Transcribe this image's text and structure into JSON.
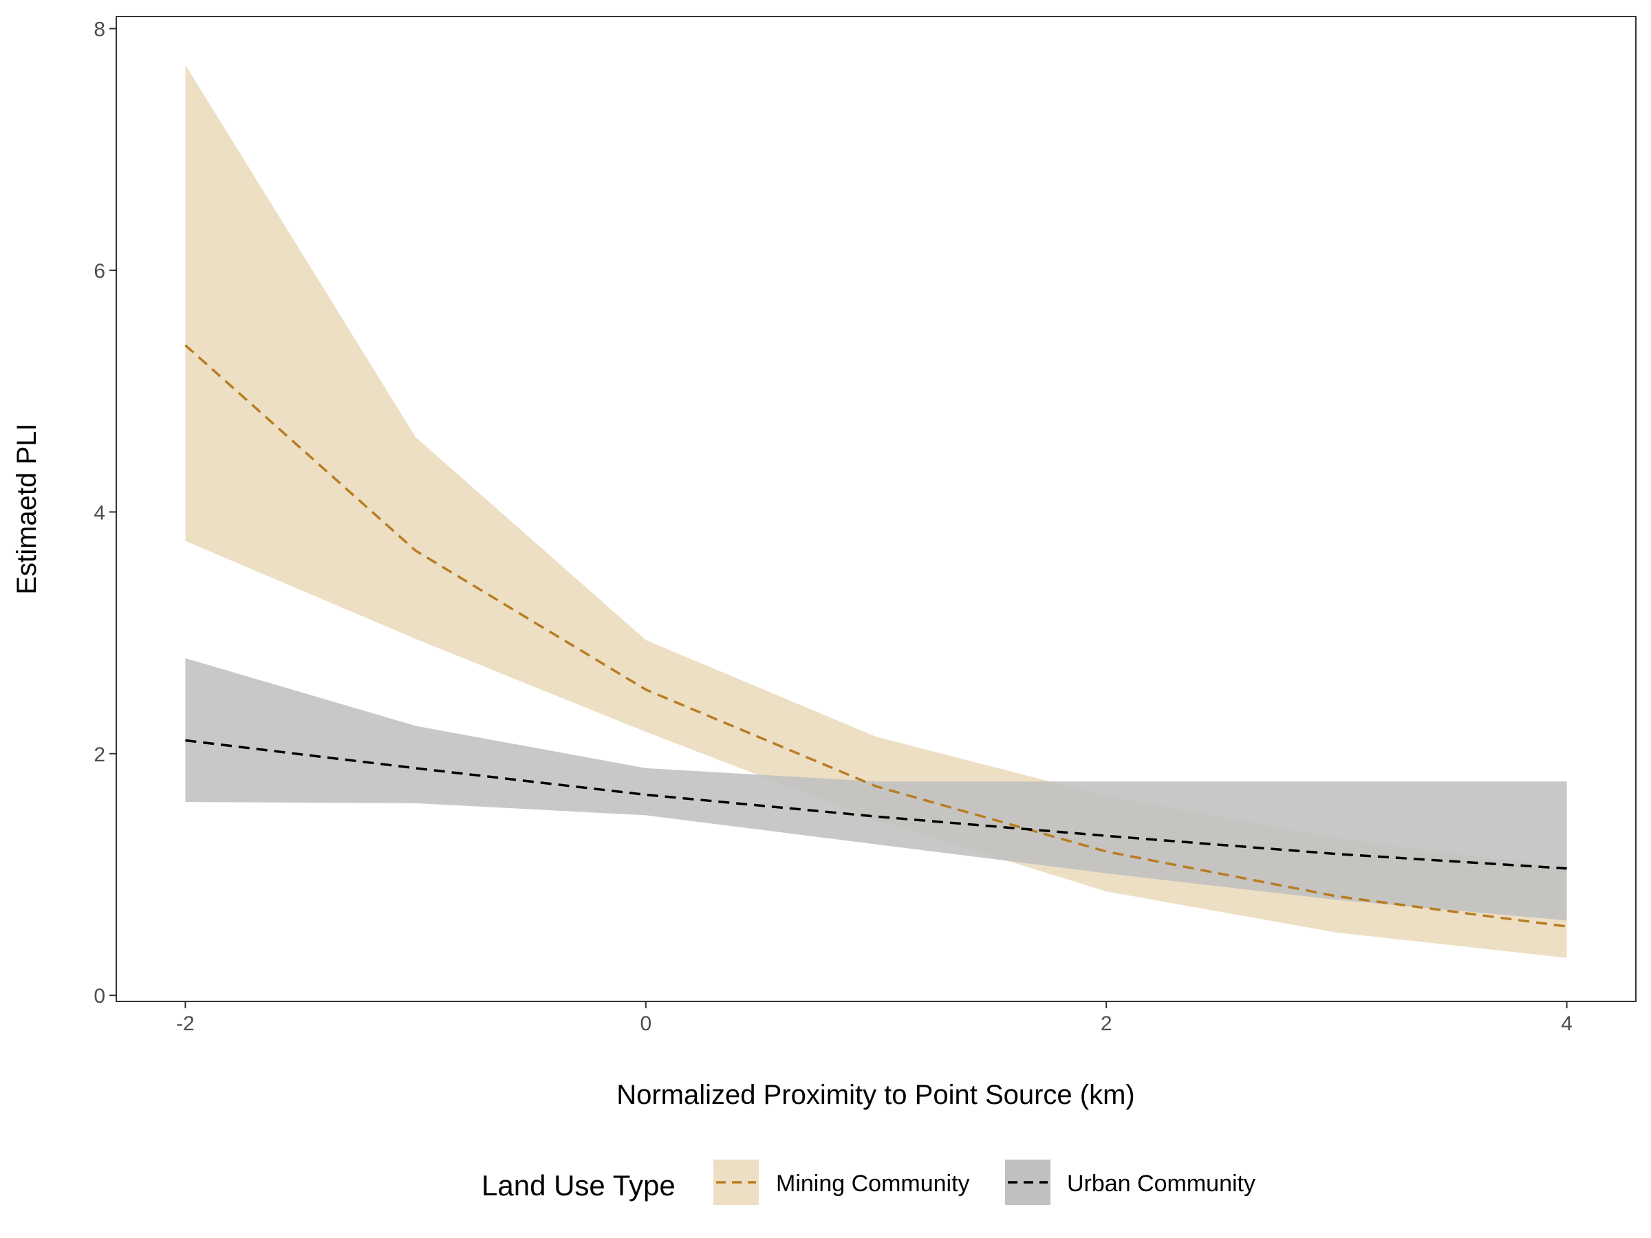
{
  "chart_data": {
    "type": "line",
    "title": "",
    "xlabel": "Normalized Proximity to Point Source (km)",
    "ylabel": "Estimaetd PLI",
    "xlim": [
      -2.3,
      4.3
    ],
    "ylim": [
      -0.05,
      8.1
    ],
    "x_ticks": [
      -2,
      0,
      2,
      4
    ],
    "x_tick_labels": [
      "-2",
      "0",
      "2",
      "4"
    ],
    "y_ticks": [
      0,
      2,
      4,
      6,
      8
    ],
    "y_tick_labels": [
      "0",
      "2",
      "4",
      "6",
      "8"
    ],
    "grid": false,
    "legend": {
      "title": "Land Use Type",
      "position": "bottom"
    },
    "x": [
      -2,
      -1,
      0,
      1,
      2,
      3,
      4
    ],
    "series": [
      {
        "name": "Mining Community",
        "line_color": "#b87c22",
        "ribbon_color": "#eddfc3",
        "values": [
          5.38,
          3.68,
          2.53,
          1.73,
          1.19,
          0.82,
          0.57
        ],
        "lower": [
          3.76,
          2.95,
          2.18,
          1.45,
          0.86,
          0.52,
          0.31
        ],
        "upper": [
          7.7,
          4.62,
          2.94,
          2.14,
          1.65,
          1.3,
          1.05
        ]
      },
      {
        "name": "Urban Community",
        "line_color": "#000000",
        "ribbon_color": "#c0c0c0",
        "values": [
          2.11,
          1.88,
          1.66,
          1.48,
          1.32,
          1.17,
          1.05
        ],
        "lower": [
          1.6,
          1.59,
          1.49,
          1.25,
          1.01,
          0.79,
          0.62
        ],
        "upper": [
          2.79,
          2.23,
          1.88,
          1.77,
          1.77,
          1.77,
          1.77
        ]
      }
    ]
  }
}
